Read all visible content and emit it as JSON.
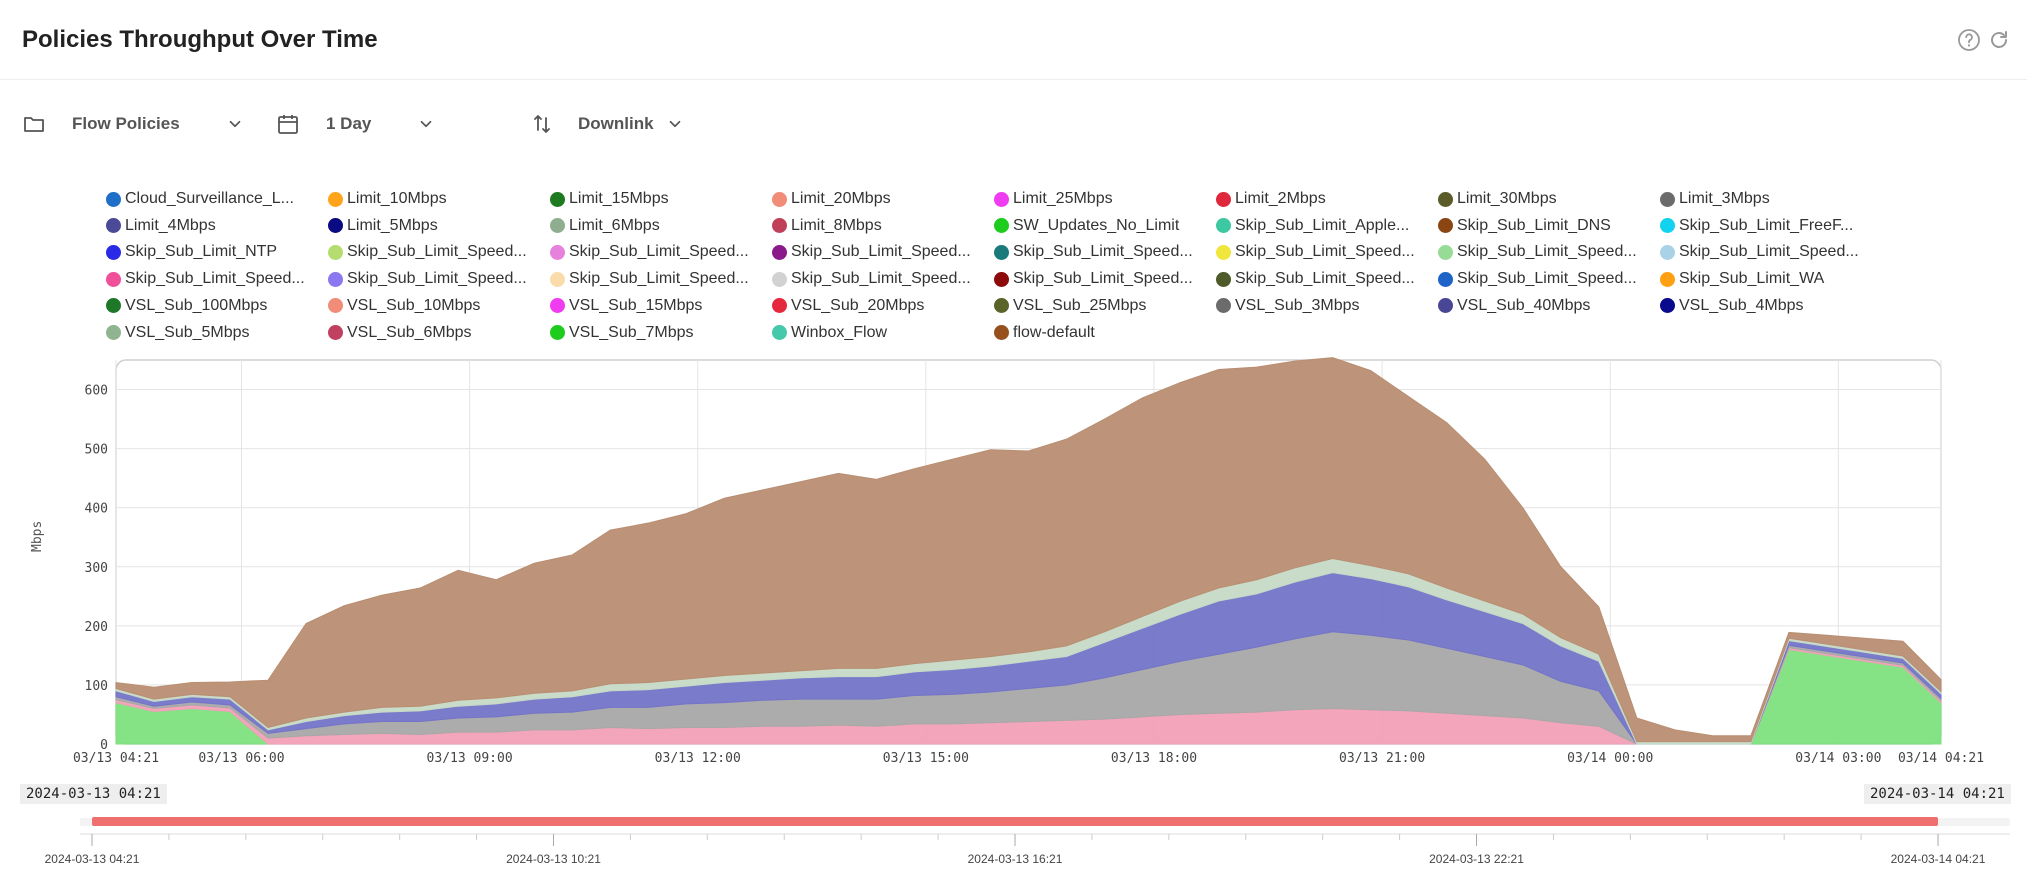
{
  "header": {
    "title": "Policies Throughput Over Time",
    "help_icon": "help-circle-icon",
    "refresh_icon": "refresh-icon"
  },
  "toolbar": {
    "group_icon": "folder-icon",
    "group_label": "Flow Policies",
    "period_icon": "calendar-icon",
    "period_label": "1 Day",
    "direction_icon": "swap-vertical-icon",
    "direction_label": "Downlink"
  },
  "legend": [
    {
      "name": "Cloud_Surveillance_L...",
      "color": "#1f6fc9"
    },
    {
      "name": "Limit_10Mbps",
      "color": "#ffa41b"
    },
    {
      "name": "Limit_15Mbps",
      "color": "#1e7a1e"
    },
    {
      "name": "Limit_20Mbps",
      "color": "#f08c78"
    },
    {
      "name": "Limit_25Mbps",
      "color": "#f03cf0"
    },
    {
      "name": "Limit_2Mbps",
      "color": "#e0283c"
    },
    {
      "name": "Limit_30Mbps",
      "color": "#5b5b2a"
    },
    {
      "name": "Limit_3Mbps",
      "color": "#6b6b6b"
    },
    {
      "name": "Limit_4Mbps",
      "color": "#4a4a96"
    },
    {
      "name": "Limit_5Mbps",
      "color": "#0a0a82"
    },
    {
      "name": "Limit_6Mbps",
      "color": "#8fae8f"
    },
    {
      "name": "Limit_8Mbps",
      "color": "#c0405a"
    },
    {
      "name": "SW_Updates_No_Limit",
      "color": "#1ecc1e"
    },
    {
      "name": "Skip_Sub_Limit_Apple...",
      "color": "#3cc8a0"
    },
    {
      "name": "Skip_Sub_Limit_DNS",
      "color": "#8b4513"
    },
    {
      "name": "Skip_Sub_Limit_FreeF...",
      "color": "#12d2f0"
    },
    {
      "name": "Skip_Sub_Limit_NTP",
      "color": "#2a2ae6"
    },
    {
      "name": "Skip_Sub_Limit_Speed...",
      "color": "#b4dc6e"
    },
    {
      "name": "Skip_Sub_Limit_Speed...",
      "color": "#e682dc"
    },
    {
      "name": "Skip_Sub_Limit_Speed...",
      "color": "#8a1a8a"
    },
    {
      "name": "Skip_Sub_Limit_Speed...",
      "color": "#1a7a7a"
    },
    {
      "name": "Skip_Sub_Limit_Speed...",
      "color": "#f0e63c"
    },
    {
      "name": "Skip_Sub_Limit_Speed...",
      "color": "#96dc96"
    },
    {
      "name": "Skip_Sub_Limit_Speed...",
      "color": "#aad2e6"
    },
    {
      "name": "Skip_Sub_Limit_Speed...",
      "color": "#f0509a"
    },
    {
      "name": "Skip_Sub_Limit_Speed...",
      "color": "#8a78f0"
    },
    {
      "name": "Skip_Sub_Limit_Speed...",
      "color": "#fadcaa"
    },
    {
      "name": "Skip_Sub_Limit_Speed...",
      "color": "#d2d2d2"
    },
    {
      "name": "Skip_Sub_Limit_Speed...",
      "color": "#8c0a0a"
    },
    {
      "name": "Skip_Sub_Limit_Speed...",
      "color": "#4e5a2a"
    },
    {
      "name": "Skip_Sub_Limit_Speed...",
      "color": "#1e64c8"
    },
    {
      "name": "Skip_Sub_Limit_WA",
      "color": "#ffa014"
    },
    {
      "name": "VSL_Sub_100Mbps",
      "color": "#1e7828"
    },
    {
      "name": "VSL_Sub_10Mbps",
      "color": "#f08c78"
    },
    {
      "name": "VSL_Sub_15Mbps",
      "color": "#f03cf0"
    },
    {
      "name": "VSL_Sub_20Mbps",
      "color": "#e6283c"
    },
    {
      "name": "VSL_Sub_25Mbps",
      "color": "#5a6428"
    },
    {
      "name": "VSL_Sub_3Mbps",
      "color": "#6b6b6b"
    },
    {
      "name": "VSL_Sub_40Mbps",
      "color": "#4a4696"
    },
    {
      "name": "VSL_Sub_4Mbps",
      "color": "#0a0a8c"
    },
    {
      "name": "VSL_Sub_5Mbps",
      "color": "#8fb48f"
    },
    {
      "name": "VSL_Sub_6Mbps",
      "color": "#c04060"
    },
    {
      "name": "VSL_Sub_7Mbps",
      "color": "#1ecc1e"
    },
    {
      "name": "Winbox_Flow",
      "color": "#46c8aa"
    },
    {
      "name": "flow-default",
      "color": "#96501e"
    }
  ],
  "chart_data": {
    "type": "area",
    "stacked": true,
    "title": "Policies Throughput Over Time",
    "ylabel": "Mbps",
    "xlabel": "",
    "ylim": [
      0,
      650
    ],
    "yticks": [
      0,
      100,
      200,
      300,
      400,
      500,
      600
    ],
    "x_hours": [
      0,
      0.5,
      1,
      1.5,
      2,
      2.5,
      3,
      3.5,
      4,
      4.5,
      5,
      5.5,
      6,
      6.5,
      7,
      7.5,
      8,
      8.5,
      9,
      9.5,
      10,
      10.5,
      11,
      11.5,
      12,
      12.5,
      13,
      13.5,
      14,
      14.5,
      15,
      15.5,
      16,
      16.5,
      17,
      17.5,
      18,
      18.5,
      19,
      19.5,
      20,
      20.5,
      21,
      21.5,
      22,
      22.5,
      23,
      23.5,
      24
    ],
    "xticks": [
      {
        "hour": 0,
        "label": "03/13 04:21"
      },
      {
        "hour": 1.65,
        "label": "03/13 06:00"
      },
      {
        "hour": 4.65,
        "label": "03/13 09:00"
      },
      {
        "hour": 7.65,
        "label": "03/13 12:00"
      },
      {
        "hour": 10.65,
        "label": "03/13 15:00"
      },
      {
        "hour": 13.65,
        "label": "03/13 18:00"
      },
      {
        "hour": 16.65,
        "label": "03/13 21:00"
      },
      {
        "hour": 19.65,
        "label": "03/14 00:00"
      },
      {
        "hour": 22.65,
        "label": "03/14 03:00"
      },
      {
        "hour": 24,
        "label": "03/14 04:21"
      }
    ],
    "series": [
      {
        "name": "VSL_Sub_7Mbps",
        "color": "#7ee07e",
        "values": [
          70,
          55,
          60,
          55,
          0,
          0,
          0,
          0,
          0,
          0,
          0,
          0,
          0,
          0,
          0,
          0,
          0,
          0,
          0,
          0,
          0,
          0,
          0,
          0,
          0,
          0,
          0,
          0,
          0,
          0,
          0,
          0,
          0,
          0,
          0,
          0,
          0,
          0,
          0,
          0,
          0,
          0,
          0,
          0,
          160,
          150,
          140,
          130,
          70
        ]
      },
      {
        "name": "Skip_Sub_Limit_Speed... (mix)",
        "color": "#f2a0b8",
        "values": [
          5,
          5,
          6,
          6,
          10,
          14,
          16,
          18,
          16,
          20,
          20,
          24,
          24,
          28,
          26,
          28,
          28,
          30,
          30,
          32,
          30,
          34,
          34,
          36,
          38,
          40,
          42,
          46,
          50,
          52,
          54,
          58,
          60,
          58,
          56,
          52,
          48,
          44,
          36,
          30,
          0,
          0,
          0,
          0,
          3,
          3,
          3,
          3,
          3
        ]
      },
      {
        "name": "Limit_3Mbps",
        "color": "#a8a8a8",
        "values": [
          5,
          4,
          5,
          5,
          8,
          12,
          18,
          20,
          22,
          24,
          26,
          28,
          30,
          34,
          36,
          40,
          42,
          44,
          46,
          44,
          46,
          48,
          50,
          52,
          56,
          60,
          70,
          80,
          90,
          100,
          110,
          120,
          130,
          126,
          120,
          110,
          100,
          90,
          70,
          60,
          0,
          0,
          0,
          0,
          4,
          4,
          4,
          4,
          4
        ]
      },
      {
        "name": "VSL_Sub_40Mbps",
        "color": "#7474c8",
        "values": [
          10,
          8,
          9,
          10,
          6,
          12,
          14,
          16,
          18,
          20,
          22,
          24,
          26,
          28,
          30,
          30,
          34,
          34,
          36,
          38,
          38,
          40,
          42,
          44,
          46,
          48,
          60,
          70,
          80,
          90,
          90,
          96,
          100,
          96,
          90,
          82,
          76,
          70,
          60,
          50,
          0,
          0,
          0,
          0,
          8,
          8,
          8,
          8,
          8
        ]
      },
      {
        "name": "VSL_Sub_5Mbps",
        "color": "#c6d9c6",
        "values": [
          4,
          4,
          4,
          4,
          4,
          6,
          6,
          8,
          8,
          10,
          10,
          10,
          10,
          12,
          12,
          12,
          12,
          12,
          12,
          14,
          14,
          14,
          16,
          16,
          16,
          18,
          18,
          20,
          22,
          22,
          24,
          24,
          24,
          22,
          22,
          20,
          18,
          16,
          14,
          12,
          4,
          4,
          4,
          4,
          4,
          4,
          4,
          4,
          4
        ]
      },
      {
        "name": "flow-default",
        "color": "#b98e72",
        "values": [
          10,
          20,
          20,
          25,
          80,
          160,
          180,
          190,
          200,
          220,
          200,
          220,
          230,
          260,
          270,
          280,
          300,
          310,
          320,
          330,
          320,
          330,
          340,
          350,
          340,
          350,
          360,
          370,
          370,
          370,
          360,
          350,
          340,
          330,
          300,
          280,
          240,
          180,
          120,
          80,
          40,
          20,
          10,
          10,
          10,
          15,
          20,
          25,
          20
        ]
      }
    ]
  },
  "range": {
    "start_label": "2024-03-13 04:21",
    "end_label": "2024-03-14 04:21"
  },
  "navigator": {
    "ticks": [
      {
        "pos": 0,
        "label": "2024-03-13 04:21"
      },
      {
        "pos": 0.25,
        "label": "2024-03-13 10:21"
      },
      {
        "pos": 0.5,
        "label": "2024-03-13 16:21"
      },
      {
        "pos": 0.75,
        "label": "2024-03-13 22:21"
      },
      {
        "pos": 1,
        "label": "2024-03-14 04:21"
      }
    ]
  }
}
